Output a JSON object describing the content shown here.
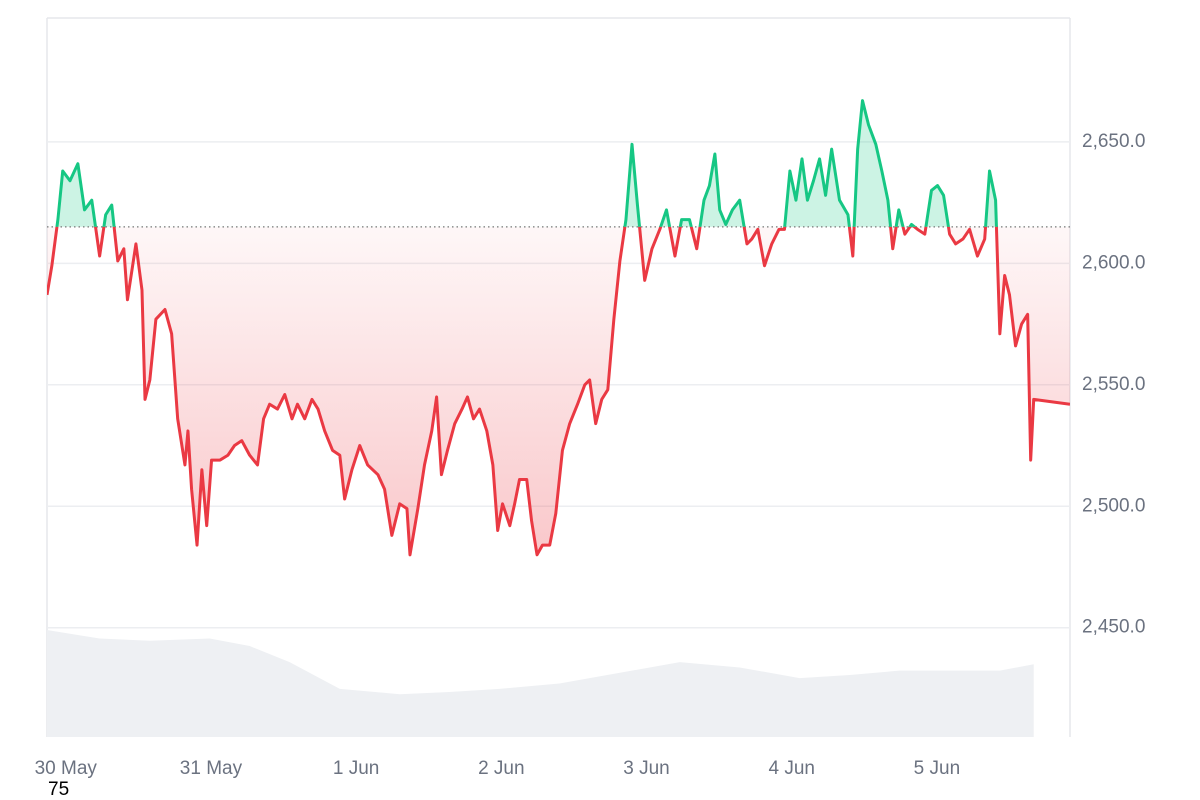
{
  "chart_data": {
    "type": "line",
    "x": [
      -3.1,
      -2.3,
      -1.3,
      -0.5,
      0.7,
      2.0,
      3.1,
      4.3,
      5.6,
      6.6,
      7.6,
      8.6,
      9.6,
      10.2,
      11.6,
      12.6,
      13.1,
      13.9,
      14.9,
      16.4,
      17.5,
      18.5,
      19.7,
      20.2,
      20.8,
      21.7,
      22.5,
      23.3,
      24.1,
      25.5,
      26.8,
      27.9,
      29.1,
      30.4,
      31.7,
      32.7,
      33.7,
      35.0,
      36.2,
      37.4,
      38.3,
      39.5,
      40.7,
      41.7,
      42.8,
      44.1,
      45.3,
      46.1,
      47.3,
      48.6,
      49.9,
      51.6,
      52.7,
      53.9,
      55.2,
      56.4,
      56.9,
      58.2,
      59.3,
      60.5,
      61.3,
      62.1,
      63.1,
      64.3,
      65.5,
      66.4,
      67.4,
      68.4,
      69.6,
      70.6,
      71.4,
      72.2,
      73.4,
      74.2,
      75.0,
      76.2,
      77.0,
      77.9,
      78.8,
      80.0,
      81.0,
      82.1,
      83.3,
      84.6,
      85.8,
      86.6,
      87.6,
      88.6,
      89.6,
      90.6,
      91.6,
      92.6,
      93.6,
      94.5,
      95.7,
      96.9,
      98.2,
      99.3,
      100.7,
      101.8,
      103.1,
      104.3,
      105.5,
      106.4,
      107.3,
      108.1,
      109.1,
      110.2,
      111.4,
      112.6,
      113.4,
      114.4,
      115.5,
      116.7,
      117.9,
      118.8,
      119.7,
      120.7,
      121.7,
      122.6,
      123.6,
      124.6,
      125.6,
      126.6,
      127.9,
      129.3,
      130.1,
      130.9,
      131.7,
      132.7,
      133.9,
      134.9,
      135.9,
      136.7,
      137.7,
      138.7,
      139.8,
      140.8,
      142.0,
      143.1,
      144.1,
      145.1,
      146.1,
      147.1,
      148.3,
      149.4,
      150.7,
      151.9,
      152.7,
      153.7,
      154.4,
      155.2,
      156.0,
      157.0,
      158.0,
      159.0,
      159.5,
      160.0,
      166.0
    ],
    "values": [
      2587,
      2599,
      2618,
      2638,
      2634,
      2641,
      2622,
      2626,
      2603,
      2620,
      2624,
      2601,
      2606,
      2585,
      2608,
      2589,
      2544,
      2552,
      2577,
      2581,
      2571,
      2536,
      2517,
      2531,
      2507,
      2484,
      2515,
      2492,
      2519,
      2519,
      2521,
      2525,
      2527,
      2521,
      2517,
      2536,
      2542,
      2540,
      2546,
      2536,
      2542,
      2536,
      2544,
      2540,
      2531,
      2523,
      2521,
      2503,
      2515,
      2525,
      2517,
      2513,
      2507,
      2488,
      2501,
      2499,
      2480,
      2499,
      2517,
      2531,
      2545,
      2513,
      2523,
      2534,
      2540,
      2545,
      2536,
      2540,
      2531,
      2517,
      2490,
      2501,
      2492,
      2501,
      2511,
      2511,
      2494,
      2480,
      2484,
      2484,
      2497,
      2523,
      2534,
      2542,
      2550,
      2552,
      2534,
      2544,
      2548,
      2577,
      2601,
      2618,
      2649,
      2624,
      2593,
      2606,
      2614,
      2622,
      2603,
      2618,
      2618,
      2606,
      2626,
      2632,
      2645,
      2622,
      2616,
      2622,
      2626,
      2608,
      2610,
      2614,
      2599,
      2608,
      2614,
      2614,
      2638,
      2626,
      2643,
      2626,
      2634,
      2643,
      2628,
      2647,
      2626,
      2620,
      2603,
      2647,
      2667,
      2657,
      2649,
      2638,
      2626,
      2606,
      2622,
      2612,
      2616,
      2614,
      2612,
      2630,
      2632,
      2628,
      2612,
      2608,
      2610,
      2614,
      2603,
      2610,
      2638,
      2626,
      2571,
      2595,
      2587,
      2566,
      2575,
      2579,
      2519,
      2544,
      2542
    ],
    "baseline": 2615,
    "color_up": "#16c784",
    "color_down": "#ea3943",
    "volume": {
      "x": [
        -3.1,
        5.6,
        13.9,
        23.8,
        30.4,
        37.0,
        45.3,
        55.2,
        63.4,
        71.7,
        81.6,
        91.6,
        101.5,
        111.4,
        121.3,
        129.6,
        137.8,
        147.7,
        154.4,
        160.0
      ],
      "values": [
        100,
        92,
        90,
        92,
        85,
        70,
        45,
        40,
        42,
        45,
        50,
        60,
        70,
        65,
        55,
        58,
        62,
        62,
        62,
        68
      ],
      "color": "#eef0f3"
    },
    "volume_lim": [
      0,
      100
    ],
    "xlim": [
      -3.1,
      166
    ],
    "ylim": [
      2405,
      2701
    ],
    "xticks": [
      {
        "value": 0,
        "label": "30 May"
      },
      {
        "value": 24,
        "label": "31 May"
      },
      {
        "value": 48,
        "label": "1 Jun"
      },
      {
        "value": 72,
        "label": "2 Jun"
      },
      {
        "value": 96,
        "label": "3 Jun"
      },
      {
        "value": 120,
        "label": "4 Jun"
      },
      {
        "value": 144,
        "label": "5 Jun"
      }
    ],
    "yticks": [
      {
        "value": 2450,
        "label": "2,450.0"
      },
      {
        "value": 2500,
        "label": "2,500.0"
      },
      {
        "value": 2550,
        "label": "2,550.0"
      },
      {
        "value": 2600,
        "label": "2,600.0"
      },
      {
        "value": 2650,
        "label": "2,650.0"
      }
    ],
    "grid": true,
    "annotation": "75"
  }
}
